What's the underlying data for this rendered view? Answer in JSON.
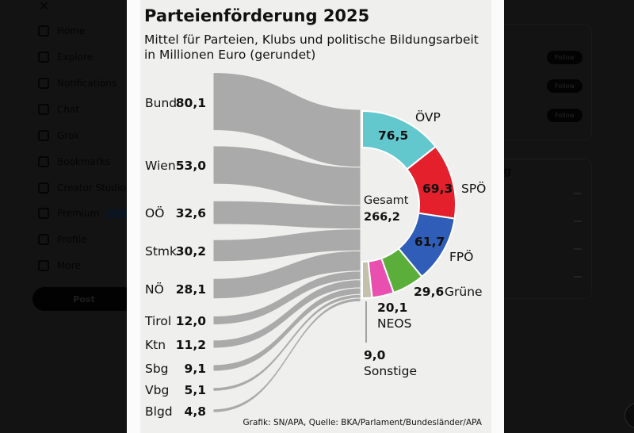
{
  "sidebar": {
    "items": [
      {
        "label": "Home",
        "icon": "home-icon"
      },
      {
        "label": "Explore",
        "icon": "search-icon"
      },
      {
        "label": "Notifications",
        "icon": "bell-icon"
      },
      {
        "label": "Chat",
        "icon": "mail-icon"
      },
      {
        "label": "Grok",
        "icon": "grok-icon"
      },
      {
        "label": "Bookmarks",
        "icon": "bookmark-icon"
      },
      {
        "label": "Creator Studio",
        "icon": "rocket-icon"
      },
      {
        "label": "Premium",
        "icon": "x-icon"
      },
      {
        "label": "Profile",
        "icon": "person-icon"
      },
      {
        "label": "More",
        "icon": "more-circle-icon"
      }
    ],
    "post_label": "Post"
  },
  "right": {
    "follow_label": "Follow",
    "section_heading_fragment": "ing"
  },
  "graphic": {
    "title": "Parteienförderung 2025",
    "subtitle_line1": "Mittel für Parteien, Klubs und politische Bildungsarbeit",
    "subtitle_line2": "in Millionen Euro (gerundet)",
    "total_label": "Gesamt",
    "total_value": "266,2",
    "credit": "Grafik: SN/APA, Quelle: BKA/Parlament/Bundesländer/APA"
  },
  "chart_data": {
    "type": "sankey",
    "unit": "Millionen Euro",
    "sources": [
      {
        "name": "Bund",
        "value": 80.1,
        "label": "80,1"
      },
      {
        "name": "Wien",
        "value": 53.0,
        "label": "53,0"
      },
      {
        "name": "OÖ",
        "value": 32.6,
        "label": "32,6"
      },
      {
        "name": "Stmk",
        "value": 30.2,
        "label": "30,2"
      },
      {
        "name": "NÖ",
        "value": 28.1,
        "label": "28,1"
      },
      {
        "name": "Tirol",
        "value": 12.0,
        "label": "12,0"
      },
      {
        "name": "Ktn",
        "value": 11.2,
        "label": "11,2"
      },
      {
        "name": "Sbg",
        "value": 9.1,
        "label": "9,1"
      },
      {
        "name": "Vbg",
        "value": 5.1,
        "label": "5,1"
      },
      {
        "name": "Blgd",
        "value": 4.8,
        "label": "4,8"
      }
    ],
    "targets": [
      {
        "name": "ÖVP",
        "value": 76.5,
        "label": "76,5",
        "color": "#63c8ce"
      },
      {
        "name": "SPÖ",
        "value": 69.3,
        "label": "69,3",
        "color": "#e3202b"
      },
      {
        "name": "FPÖ",
        "value": 61.7,
        "label": "61,7",
        "color": "#2f5db7"
      },
      {
        "name": "Grüne",
        "value": 29.6,
        "label": "29,6",
        "color": "#5cae3b"
      },
      {
        "name": "NEOS",
        "value": 20.1,
        "label": "20,1",
        "color": "#e94faf"
      },
      {
        "name": "Sonstige",
        "value": 9.0,
        "label": "9,0",
        "color": "#c5c0ab"
      }
    ],
    "total": 266.2,
    "flow_color": "#aaaaaa"
  }
}
